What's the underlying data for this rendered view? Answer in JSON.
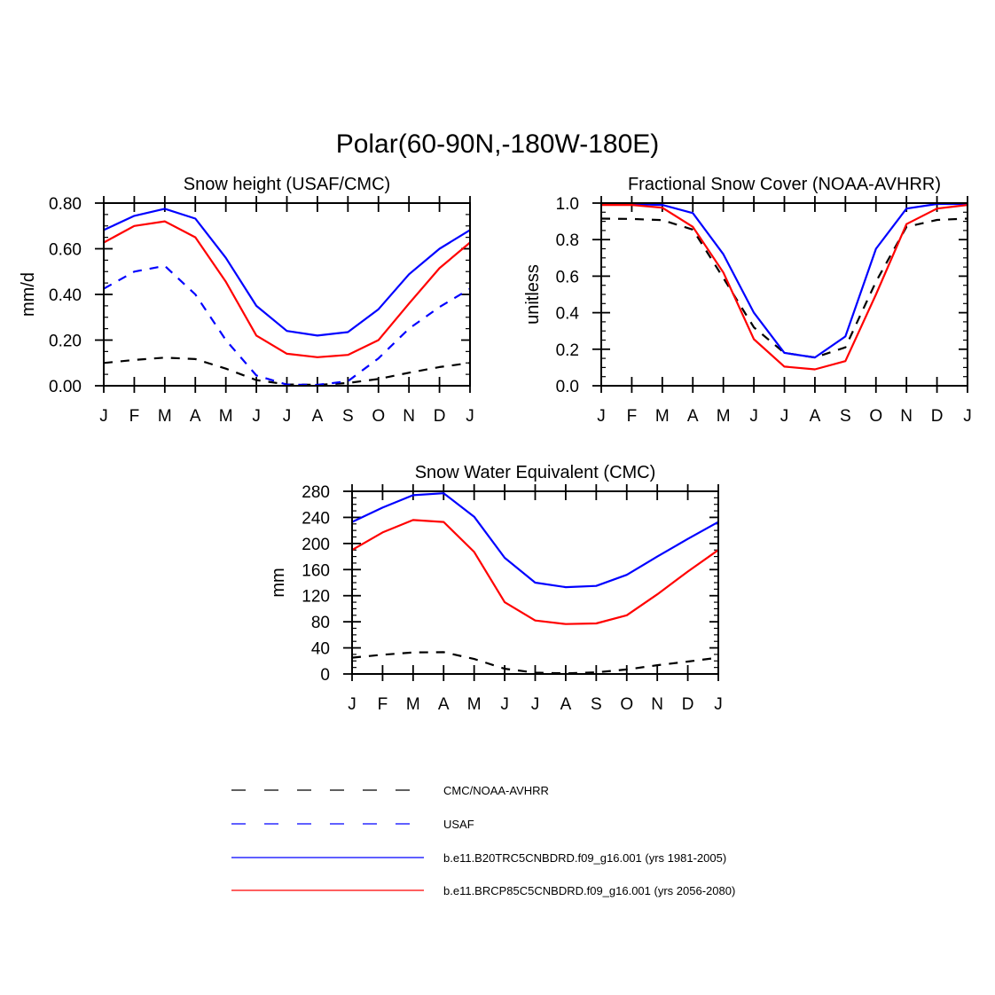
{
  "figure": {
    "title": "Polar(60-90N,-180W-180E)"
  },
  "legend": {
    "placement": "bottom-center",
    "items": [
      {
        "label": "CMC/NOAA-AVHRR",
        "color": "#000000",
        "dash": "dashed"
      },
      {
        "label": "USAF",
        "color": "#0000ff",
        "dash": "dashed"
      },
      {
        "label": "b.e11.B20TRC5CNBDRD.f09_g16.001 (yrs 1981-2005)",
        "color": "#0000ff",
        "dash": "solid"
      },
      {
        "label": "b.e11.BRCP85C5CNBDRD.f09_g16.001 (yrs 2056-2080)",
        "color": "#ff0000",
        "dash": "solid"
      }
    ]
  },
  "chart_data": [
    {
      "type": "line",
      "title": "Snow height (USAF/CMC)",
      "ylabel": "mm/d",
      "xlabel": "",
      "categories": [
        "J",
        "F",
        "M",
        "A",
        "M",
        "J",
        "J",
        "A",
        "S",
        "O",
        "N",
        "D",
        "J"
      ],
      "ylim": [
        0,
        0.8
      ],
      "yticks": [
        0,
        0.2,
        0.4,
        0.6,
        0.8
      ],
      "ytick_labels": [
        "0.00",
        "0.20",
        "0.40",
        "0.60",
        "0.80"
      ],
      "series": [
        {
          "name": "CMC/NOAA-AVHRR",
          "color": "#000000",
          "dash": "dashed",
          "values": [
            0.1,
            0.113,
            0.123,
            0.117,
            0.075,
            0.025,
            0.006,
            0.004,
            0.012,
            0.03,
            0.057,
            0.082,
            0.1
          ]
        },
        {
          "name": "USAF",
          "color": "#0000ff",
          "dash": "dashed",
          "values": [
            0.425,
            0.5,
            0.525,
            0.4,
            0.2,
            0.045,
            0.005,
            0.004,
            0.02,
            0.12,
            0.25,
            0.345,
            0.425
          ]
        },
        {
          "name": "b.e11.B20TRC5CNBDRD.f09_g16.001 (yrs 1981-2005)",
          "color": "#0000ff",
          "dash": "solid",
          "values": [
            0.682,
            0.744,
            0.775,
            0.732,
            0.56,
            0.35,
            0.24,
            0.22,
            0.235,
            0.335,
            0.488,
            0.6,
            0.682
          ]
        },
        {
          "name": "b.e11.BRCP85C5CNBDRD.f09_g16.001 (yrs 2056-2080)",
          "color": "#ff0000",
          "dash": "solid",
          "values": [
            0.627,
            0.7,
            0.72,
            0.65,
            0.455,
            0.22,
            0.14,
            0.125,
            0.135,
            0.2,
            0.36,
            0.515,
            0.627
          ]
        }
      ]
    },
    {
      "type": "line",
      "title": "Fractional Snow Cover (NOAA-AVHRR)",
      "ylabel": "unitless",
      "xlabel": "",
      "categories": [
        "J",
        "F",
        "M",
        "A",
        "M",
        "J",
        "J",
        "A",
        "S",
        "O",
        "N",
        "D",
        "J"
      ],
      "ylim": [
        0,
        1.0
      ],
      "yticks": [
        0,
        0.2,
        0.4,
        0.6,
        0.8,
        1.0
      ],
      "ytick_labels": [
        "0.0",
        "0.2",
        "0.4",
        "0.6",
        "0.8",
        "1.0"
      ],
      "series": [
        {
          "name": "CMC/NOAA-AVHRR",
          "color": "#000000",
          "dash": "dashed",
          "values": [
            0.915,
            0.913,
            0.907,
            0.855,
            0.59,
            0.32,
            0.18,
            0.155,
            0.21,
            0.57,
            0.87,
            0.908,
            0.915
          ]
        },
        {
          "name": "b.e11.B20TRC5CNBDRD.f09_g16.001 (yrs 1981-2005)",
          "color": "#0000ff",
          "dash": "solid",
          "values": [
            0.995,
            0.995,
            0.99,
            0.945,
            0.72,
            0.4,
            0.18,
            0.155,
            0.27,
            0.75,
            0.97,
            0.995,
            0.995
          ]
        },
        {
          "name": "b.e11.BRCP85C5CNBDRD.f09_g16.001 (yrs 2056-2080)",
          "color": "#ff0000",
          "dash": "solid",
          "values": [
            0.99,
            0.99,
            0.975,
            0.87,
            0.62,
            0.255,
            0.105,
            0.09,
            0.135,
            0.5,
            0.885,
            0.97,
            0.99
          ]
        }
      ]
    },
    {
      "type": "line",
      "title": "Snow Water Equivalent (CMC)",
      "ylabel": "mm",
      "xlabel": "",
      "categories": [
        "J",
        "F",
        "M",
        "A",
        "M",
        "J",
        "J",
        "A",
        "S",
        "O",
        "N",
        "D",
        "J"
      ],
      "ylim": [
        0,
        280
      ],
      "yticks": [
        0,
        40,
        80,
        120,
        160,
        200,
        240,
        280
      ],
      "ytick_labels": [
        "0",
        "40",
        "80",
        "120",
        "160",
        "200",
        "240",
        "280"
      ],
      "series": [
        {
          "name": "CMC/NOAA-AVHRR",
          "color": "#000000",
          "dash": "dashed",
          "values": [
            25,
            29.5,
            33,
            33.5,
            23,
            8,
            2,
            1,
            2.5,
            7,
            13.5,
            19,
            25
          ]
        },
        {
          "name": "b.e11.B20TRC5CNBDRD.f09_g16.001 (yrs 1981-2005)",
          "color": "#0000ff",
          "dash": "solid",
          "values": [
            233,
            255,
            274,
            277,
            241,
            178,
            140,
            133,
            135,
            152,
            180,
            207,
            233
          ]
        },
        {
          "name": "b.e11.BRCP85C5CNBDRD.f09_g16.001 (yrs 2056-2080)",
          "color": "#ff0000",
          "dash": "solid",
          "values": [
            190,
            217,
            236,
            233,
            187,
            110,
            82,
            76.5,
            77.5,
            90,
            122,
            157,
            190
          ]
        }
      ]
    }
  ]
}
